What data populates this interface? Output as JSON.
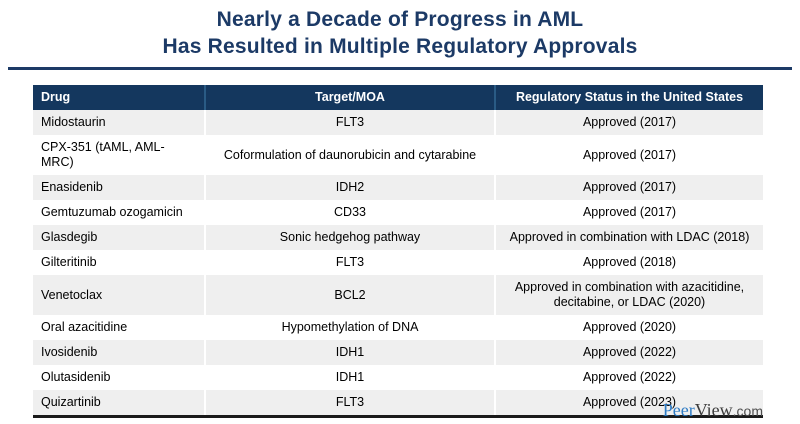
{
  "title": {
    "line1": "Nearly a Decade of Progress in AML",
    "line2": "Has Resulted in Multiple Regulatory Approvals"
  },
  "table": {
    "columns": [
      "Drug",
      "Target/MOA",
      "Regulatory Status in the United States"
    ],
    "rows": [
      {
        "drug": "Midostaurin",
        "target": "FLT3",
        "status": "Approved (2017)"
      },
      {
        "drug": "CPX-351 (tAML, AML-MRC)",
        "target": "Coformulation of daunorubicin and cytarabine",
        "status": "Approved (2017)"
      },
      {
        "drug": "Enasidenib",
        "target": "IDH2",
        "status": "Approved (2017)"
      },
      {
        "drug": "Gemtuzumab ozogamicin",
        "target": "CD33",
        "status": "Approved (2017)"
      },
      {
        "drug": "Glasdegib",
        "target": "Sonic hedgehog pathway",
        "status": "Approved in combination with LDAC (2018)"
      },
      {
        "drug": "Gilteritinib",
        "target": "FLT3",
        "status": "Approved (2018)"
      },
      {
        "drug": "Venetoclax",
        "target": "BCL2",
        "status": "Approved in combination with azacitidine, decitabine, or LDAC (2020)"
      },
      {
        "drug": "Oral azacitidine",
        "target": "Hypomethylation of DNA",
        "status": "Approved (2020)"
      },
      {
        "drug": "Ivosidenib",
        "target": "IDH1",
        "status": "Approved (2022)"
      },
      {
        "drug": "Olutasidenib",
        "target": "IDH1",
        "status": "Approved (2022)"
      },
      {
        "drug": "Quizartinib",
        "target": "FLT3",
        "status": "Approved (2023)"
      }
    ]
  },
  "footer": {
    "logo_peer": "Peer",
    "logo_view": "View",
    "logo_domain": ".com"
  },
  "colors": {
    "title_navy": "#1C3A66",
    "header_navy": "#14375E",
    "row_gray": "#EFEFEF",
    "bottom_rule": "#1A1A1A",
    "logo_blue": "#2E7BC4"
  }
}
